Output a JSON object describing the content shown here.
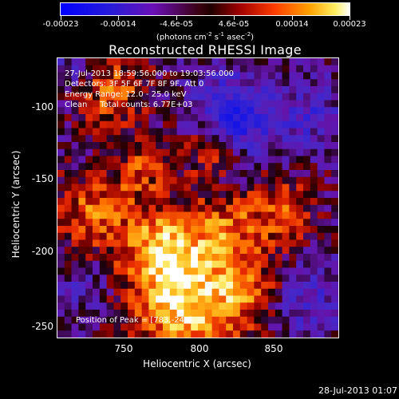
{
  "colorbar": {
    "tick_labels": [
      "-0.00023",
      "-0.00014",
      "-4.6e-05",
      "4.6e-05",
      "0.00014",
      "0.00023"
    ],
    "units_prefix": "(photons cm",
    "units_exp1": "-2",
    "units_mid": " s",
    "units_exp2": "-1",
    "units_mid2": " asec",
    "units_exp3": "-2",
    "units_suffix": ")"
  },
  "title": "Reconstructed RHESSI Image",
  "info": {
    "line1": "27-Jul-2013 18:59:56.000 to 19:03:56.000",
    "line2": "Detectors: 3F 5F 6F 7F 8F 9F, Att 0",
    "line3": "Energy Range: 12.0 - 25.0 keV",
    "line4": "Clean     Total counts: 6.77E+03",
    "peak": "Position of Peak = [783,-240]"
  },
  "axes": {
    "xlabel": "Heliocentric X (arcsec)",
    "ylabel": "Heliocentric Y (arcsec)",
    "xticks": [
      "750",
      "800",
      "850"
    ],
    "yticks": [
      "-100",
      "-150",
      "-200",
      "-250"
    ]
  },
  "timestamp": "28-Jul-2013 01:07"
}
